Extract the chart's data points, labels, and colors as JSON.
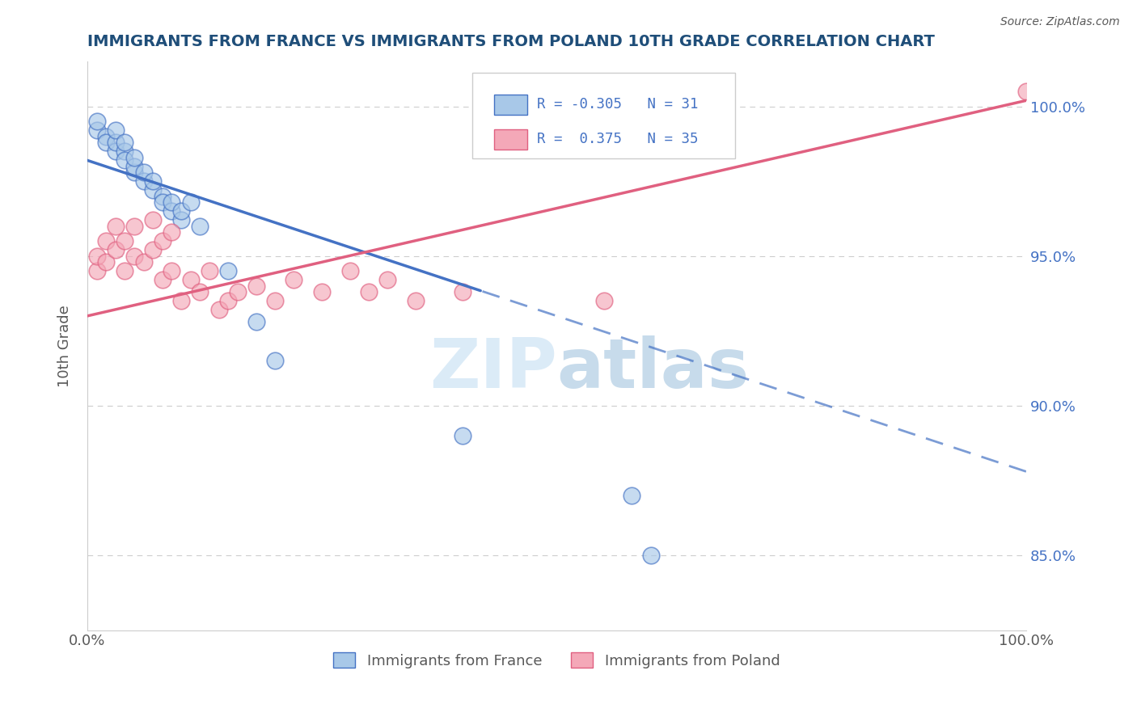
{
  "title": "IMMIGRANTS FROM FRANCE VS IMMIGRANTS FROM POLAND 10TH GRADE CORRELATION CHART",
  "source": "Source: ZipAtlas.com",
  "ylabel": "10th Grade",
  "ylabel_right_ticks": [
    100.0,
    95.0,
    90.0,
    85.0
  ],
  "ylabel_right_labels": [
    "100.0%",
    "95.0%",
    "90.0%",
    "85.0%"
  ],
  "xlim": [
    0.0,
    100.0
  ],
  "ylim": [
    82.5,
    101.5
  ],
  "legend_blue_r": "R = -0.305",
  "legend_blue_n": "N = 31",
  "legend_pink_r": "R =  0.375",
  "legend_pink_n": "N = 35",
  "legend_blue_label": "Immigrants from France",
  "legend_pink_label": "Immigrants from Poland",
  "blue_color": "#A8C8E8",
  "pink_color": "#F4A8B8",
  "blue_line_color": "#4472C4",
  "pink_line_color": "#E06080",
  "watermark_zip": "ZIP",
  "watermark_atlas": "atlas",
  "blue_scatter_x": [
    1,
    1,
    2,
    2,
    3,
    3,
    3,
    4,
    4,
    4,
    5,
    5,
    5,
    6,
    6,
    7,
    7,
    8,
    8,
    9,
    9,
    10,
    10,
    11,
    12,
    15,
    18,
    20,
    40,
    58,
    60
  ],
  "blue_scatter_y": [
    99.2,
    99.5,
    99.0,
    98.8,
    98.5,
    98.8,
    99.2,
    98.5,
    98.2,
    98.8,
    97.8,
    98.0,
    98.3,
    97.5,
    97.8,
    97.2,
    97.5,
    97.0,
    96.8,
    96.5,
    96.8,
    96.2,
    96.5,
    96.8,
    96.0,
    94.5,
    92.8,
    91.5,
    89.0,
    87.0,
    85.0
  ],
  "pink_scatter_x": [
    1,
    1,
    2,
    2,
    3,
    3,
    4,
    4,
    5,
    5,
    6,
    7,
    7,
    8,
    8,
    9,
    9,
    10,
    11,
    12,
    13,
    14,
    15,
    16,
    18,
    20,
    22,
    25,
    28,
    30,
    32,
    35,
    40,
    55,
    100
  ],
  "pink_scatter_y": [
    94.5,
    95.0,
    95.5,
    94.8,
    95.2,
    96.0,
    94.5,
    95.5,
    95.0,
    96.0,
    94.8,
    95.2,
    96.2,
    95.5,
    94.2,
    95.8,
    94.5,
    93.5,
    94.2,
    93.8,
    94.5,
    93.2,
    93.5,
    93.8,
    94.0,
    93.5,
    94.2,
    93.8,
    94.5,
    93.8,
    94.2,
    93.5,
    93.8,
    93.5,
    100.5
  ],
  "blue_line_start_x": 0,
  "blue_line_end_x": 100,
  "blue_line_start_y": 98.2,
  "blue_line_end_y": 87.8,
  "blue_solid_end_x": 42,
  "pink_line_start_x": 0,
  "pink_line_end_x": 100,
  "pink_line_start_y": 93.0,
  "pink_line_end_y": 100.2,
  "background_color": "#FFFFFF",
  "grid_color": "#C8C8C8",
  "title_color": "#1F4E79",
  "text_color": "#595959"
}
